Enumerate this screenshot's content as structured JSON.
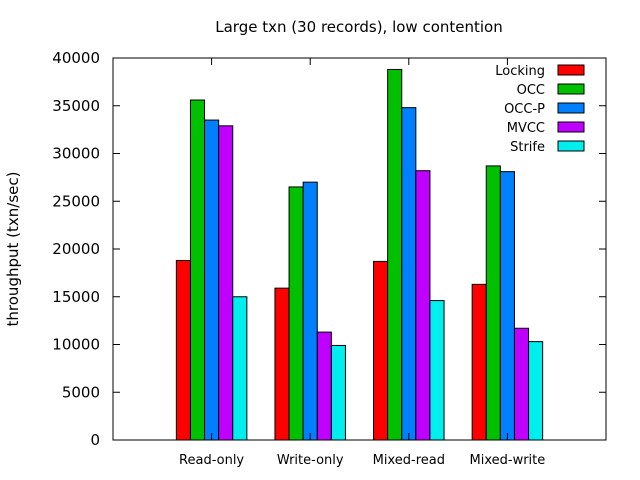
{
  "chart_data": {
    "type": "bar",
    "title": "Large txn (30 records), low contention",
    "xlabel": "",
    "ylabel": "throughput (txn/sec)",
    "ylim": [
      0,
      40000
    ],
    "yticks": [
      0,
      5000,
      10000,
      15000,
      20000,
      25000,
      30000,
      35000,
      40000
    ],
    "categories": [
      "Read-only",
      "Write-only",
      "Mixed-read",
      "Mixed-write"
    ],
    "series": [
      {
        "name": "Locking",
        "color": "#ff0000",
        "values": [
          18800,
          15900,
          18700,
          16300
        ]
      },
      {
        "name": "OCC",
        "color": "#00c000",
        "values": [
          35600,
          26500,
          38800,
          28700
        ]
      },
      {
        "name": "OCC-P",
        "color": "#0080ff",
        "values": [
          33500,
          27000,
          34800,
          28100
        ]
      },
      {
        "name": "MVCC",
        "color": "#c000ff",
        "values": [
          32900,
          11300,
          28200,
          11700
        ]
      },
      {
        "name": "Strife",
        "color": "#00eeee",
        "values": [
          15000,
          9900,
          14600,
          10300
        ]
      }
    ],
    "legend_position": "top-right",
    "grid": false
  }
}
